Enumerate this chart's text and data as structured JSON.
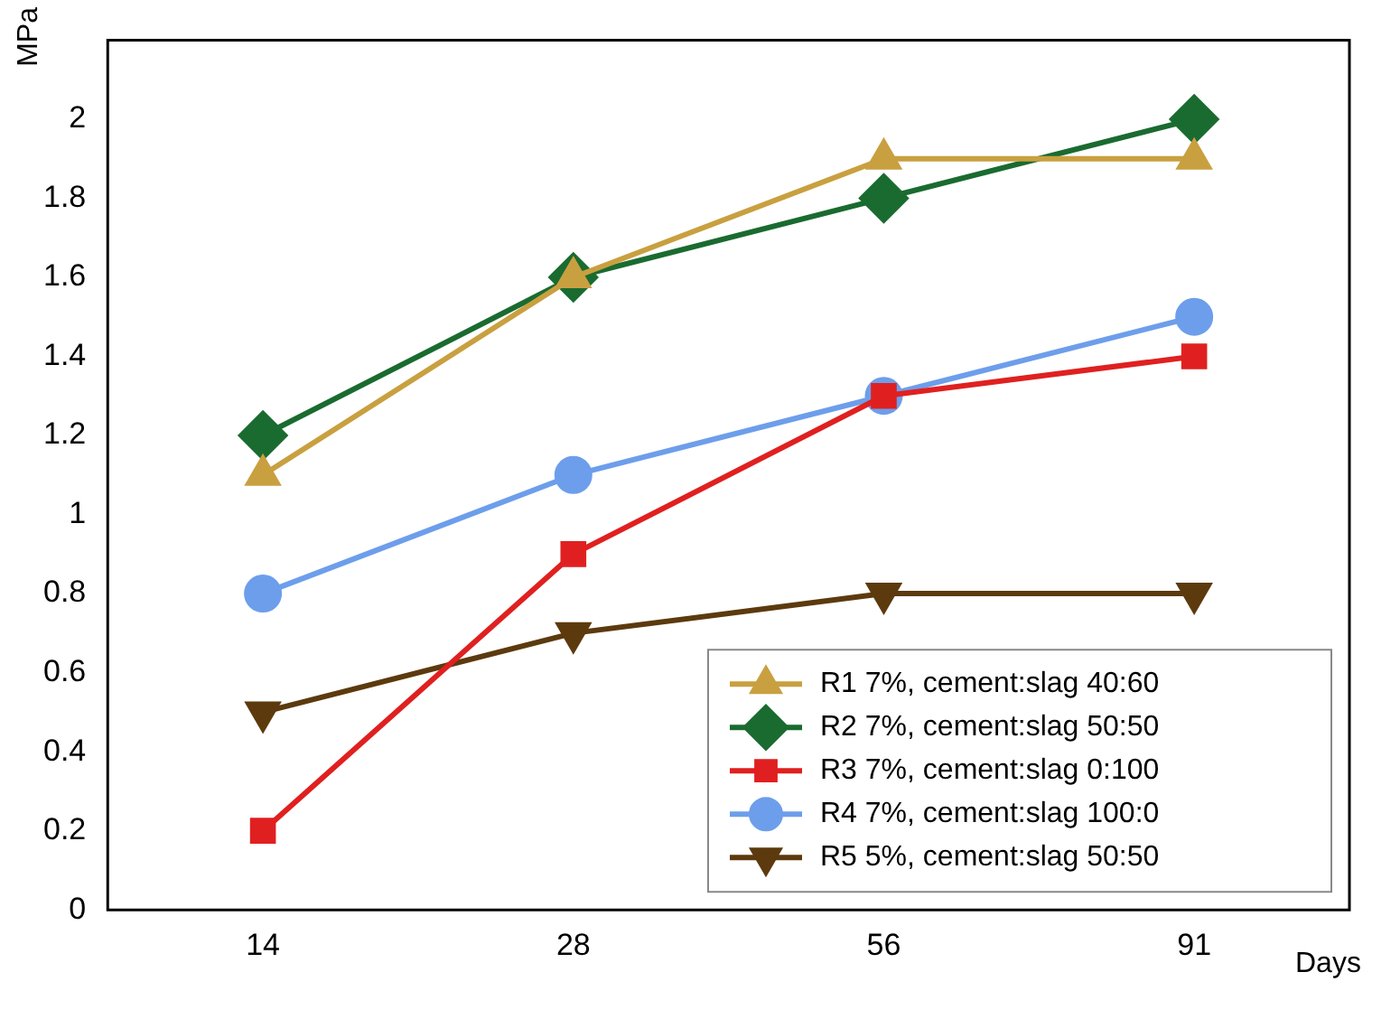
{
  "chart_data": {
    "type": "line",
    "xlabel": "Days",
    "ylabel": "MPa",
    "categories": [
      "14",
      "28",
      "56",
      "91"
    ],
    "series": [
      {
        "name": "R1 7%, cement:slag 40:60",
        "color": "#c9a040",
        "marker": "triangle",
        "values": [
          1.1,
          1.6,
          1.9,
          1.9
        ]
      },
      {
        "name": "R2 7%, cement:slag 50:50",
        "color": "#1a6b30",
        "marker": "diamond",
        "values": [
          1.2,
          1.6,
          1.8,
          2.0
        ]
      },
      {
        "name": "R3 7%, cement:slag 0:100",
        "color": "#e02020",
        "marker": "square",
        "values": [
          0.2,
          0.9,
          1.3,
          1.4
        ]
      },
      {
        "name": "R4 7%, cement:slag 100:0",
        "color": "#6d9eeb",
        "marker": "circle",
        "values": [
          0.8,
          1.1,
          1.3,
          1.5
        ]
      },
      {
        "name": "R5 5%, cement:slag 50:50",
        "color": "#5c3a0e",
        "marker": "triangle-down",
        "values": [
          0.5,
          0.7,
          0.8,
          0.8
        ]
      }
    ],
    "ylim": [
      0,
      2.2
    ],
    "yticks": [
      0,
      0.2,
      0.4,
      0.6,
      0.8,
      1,
      1.2,
      1.4,
      1.6,
      1.8,
      2
    ],
    "grid": false,
    "legend": "bottom right",
    "line_style": "solid"
  }
}
